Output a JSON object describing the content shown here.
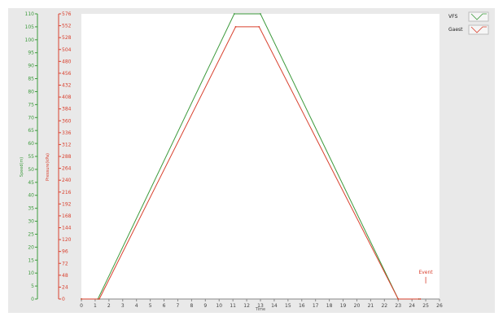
{
  "chart_data": {
    "type": "line",
    "xlabel": "Time",
    "left_axis_label": "Speed(m)",
    "right_axis_label": "Pressure(kPa)",
    "x_ticks": [
      0,
      1,
      2,
      3,
      4,
      5,
      6,
      7,
      8,
      9,
      10,
      11,
      12,
      13,
      14,
      15,
      16,
      17,
      18,
      19,
      20,
      21,
      22,
      23,
      24,
      25,
      26
    ],
    "xlim": [
      0,
      26
    ],
    "left_axis": {
      "ticks": [
        0,
        5,
        10,
        15,
        20,
        25,
        30,
        35,
        40,
        45,
        50,
        55,
        60,
        65,
        70,
        75,
        80,
        85,
        90,
        95,
        100,
        105,
        110
      ],
      "tick_labels": [
        "0",
        "5",
        "10",
        "15",
        "20",
        "25",
        "30",
        "35",
        "40",
        "45",
        "50",
        "55",
        "60",
        "65",
        "70",
        "75",
        "80",
        "85",
        "90",
        "95",
        "100",
        "105",
        "110"
      ],
      "lim": [
        0,
        110
      ]
    },
    "right_axis": {
      "ticks": [
        0,
        24,
        48,
        72,
        96,
        120,
        144,
        168,
        192,
        216,
        240,
        264,
        288,
        312,
        336,
        360,
        384,
        408,
        432,
        456,
        480,
        504,
        528,
        552,
        576
      ],
      "tick_labels": [
        "0",
        "24",
        "48",
        "72",
        "96",
        "120",
        "144",
        "168",
        "192",
        "216",
        "240",
        "264",
        "288",
        "312",
        "336",
        "360",
        "384",
        "408",
        "432",
        "456",
        "480",
        "504",
        "528",
        "552",
        "576"
      ],
      "lim": [
        0,
        576
      ]
    },
    "grid": false,
    "legend_position": "top-right",
    "series": [
      {
        "name": "VFS",
        "color": "#3c9a3c",
        "x": [
          0,
          1.2,
          11.1,
          13.0,
          23.0,
          24.5
        ],
        "y": [
          0,
          0,
          110,
          110,
          0,
          0
        ]
      },
      {
        "name": "Gaest",
        "color": "#d9412f",
        "x": [
          0,
          1.3,
          11.2,
          12.9,
          23.0,
          24.6
        ],
        "y": [
          0,
          0,
          105,
          105,
          0,
          0
        ]
      }
    ],
    "annotations": [
      {
        "text": "Event",
        "x": 25.0,
        "y": 6
      }
    ]
  }
}
